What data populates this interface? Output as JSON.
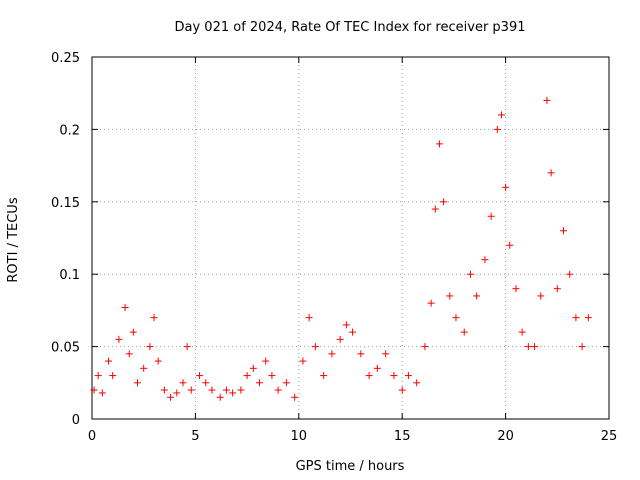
{
  "chart_data": {
    "type": "scatter",
    "title": "Day 021 of 2024, Rate Of TEC Index for receiver p391",
    "xlabel": "GPS time / hours",
    "ylabel": "ROTI / TECUs",
    "xlim": [
      0,
      25
    ],
    "ylim": [
      0,
      0.25
    ],
    "x_ticks": [
      0,
      5,
      10,
      15,
      20,
      25
    ],
    "x_tick_labels": [
      "0",
      "5",
      "10",
      "15",
      "20",
      "25"
    ],
    "y_ticks": [
      0,
      0.05,
      0.1,
      0.15,
      0.2,
      0.25
    ],
    "y_tick_labels": [
      "0",
      "0.05",
      "0.1",
      "0.15",
      "0.2",
      "0.25"
    ],
    "grid": true,
    "marker": "+",
    "color": "#ff0000",
    "series": [
      {
        "name": "ROTI",
        "x": [
          0.1,
          0.3,
          0.5,
          0.8,
          1.0,
          1.3,
          1.6,
          1.8,
          2.0,
          2.2,
          2.5,
          2.8,
          3.0,
          3.2,
          3.5,
          3.8,
          4.1,
          4.4,
          4.6,
          4.8,
          5.2,
          5.5,
          5.8,
          6.2,
          6.5,
          6.8,
          7.2,
          7.5,
          7.8,
          8.1,
          8.4,
          8.7,
          9.0,
          9.4,
          9.8,
          10.2,
          10.5,
          10.8,
          11.2,
          11.6,
          12.0,
          12.3,
          12.6,
          13.0,
          13.4,
          13.8,
          14.2,
          14.6,
          15.0,
          15.3,
          15.7,
          16.1,
          16.4,
          16.6,
          16.8,
          17.0,
          17.3,
          17.6,
          18.0,
          18.3,
          18.6,
          19.0,
          19.3,
          19.6,
          19.8,
          20.0,
          20.2,
          20.5,
          20.8,
          21.1,
          21.4,
          21.7,
          22.0,
          22.2,
          22.5,
          22.8,
          23.1,
          23.4,
          23.7,
          24.0
        ],
        "y": [
          0.02,
          0.03,
          0.018,
          0.04,
          0.03,
          0.055,
          0.077,
          0.045,
          0.06,
          0.025,
          0.035,
          0.05,
          0.07,
          0.04,
          0.02,
          0.015,
          0.018,
          0.025,
          0.05,
          0.02,
          0.03,
          0.025,
          0.02,
          0.015,
          0.02,
          0.018,
          0.02,
          0.03,
          0.035,
          0.025,
          0.04,
          0.03,
          0.02,
          0.025,
          0.015,
          0.04,
          0.07,
          0.05,
          0.03,
          0.045,
          0.055,
          0.065,
          0.06,
          0.045,
          0.03,
          0.035,
          0.045,
          0.03,
          0.02,
          0.03,
          0.025,
          0.05,
          0.08,
          0.145,
          0.19,
          0.15,
          0.085,
          0.07,
          0.06,
          0.1,
          0.085,
          0.11,
          0.14,
          0.2,
          0.21,
          0.16,
          0.12,
          0.09,
          0.06,
          0.05,
          0.05,
          0.085,
          0.22,
          0.17,
          0.09,
          0.13,
          0.1,
          0.07,
          0.05,
          0.07
        ]
      }
    ]
  }
}
